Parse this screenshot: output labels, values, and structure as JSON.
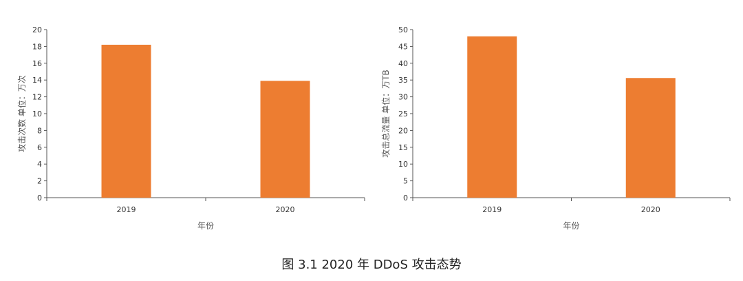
{
  "caption": "图 3.1    2020 年 DDoS 攻击态势",
  "chart_data": [
    {
      "type": "bar",
      "categories": [
        "2019",
        "2020"
      ],
      "values": [
        18.2,
        13.9
      ],
      "ylabel": "攻击次数 单位：万次",
      "xlabel": "年份",
      "ylim": [
        0,
        20
      ],
      "yticks": [
        0,
        2,
        4,
        6,
        8,
        10,
        12,
        14,
        16,
        18,
        20
      ],
      "grid": false,
      "bar_color": "#ED7D31"
    },
    {
      "type": "bar",
      "categories": [
        "2019",
        "2020"
      ],
      "values": [
        48,
        35.6
      ],
      "ylabel": "攻击总流量 单位：万TB",
      "xlabel": "年份",
      "ylim": [
        0,
        50
      ],
      "yticks": [
        0,
        5,
        10,
        15,
        20,
        25,
        30,
        35,
        40,
        45,
        50
      ],
      "grid": false,
      "bar_color": "#ED7D31"
    }
  ]
}
